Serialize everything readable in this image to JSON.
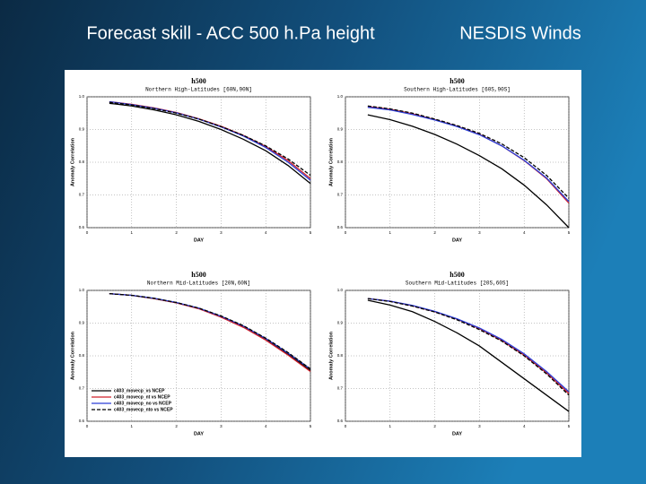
{
  "slide": {
    "title": "Forecast skill - ACC 500 h.Pa height",
    "title_right": "NESDIS Winds"
  },
  "chart_data": [
    {
      "type": "line",
      "title": "h500",
      "subtitle": "Northern High-Latitudes [60N,90N]",
      "x_label": "DAY",
      "y_label": "Anomaly Correlation",
      "x": [
        0.5,
        1,
        1.5,
        2,
        2.5,
        3,
        3.5,
        4,
        4.5,
        5
      ],
      "xlim": [
        0,
        5
      ],
      "xticks": [
        0,
        1,
        2,
        3,
        4,
        5
      ],
      "ylim": [
        0.6,
        1
      ],
      "yticks": [
        0.6,
        0.7,
        0.8,
        0.9,
        {
          "value": 1,
          "label": "1.0"
        }
      ],
      "series": [
        {
          "color": "#000000",
          "dash": false,
          "values": [
            0.98,
            0.972,
            0.96,
            0.945,
            0.925,
            0.9,
            0.87,
            0.835,
            0.79,
            0.735
          ]
        },
        {
          "color": "#d0202a",
          "dash": false,
          "values": [
            0.985,
            0.977,
            0.966,
            0.952,
            0.933,
            0.91,
            0.882,
            0.848,
            0.805,
            0.75
          ]
        },
        {
          "color": "#2a3fd8",
          "dash": false,
          "values": [
            0.985,
            0.976,
            0.965,
            0.951,
            0.932,
            0.908,
            0.88,
            0.845,
            0.8,
            0.745
          ]
        },
        {
          "color": "#000000",
          "dash": true,
          "values": [
            0.983,
            0.975,
            0.964,
            0.95,
            0.932,
            0.909,
            0.882,
            0.85,
            0.81,
            0.76
          ]
        }
      ]
    },
    {
      "type": "line",
      "title": "h500",
      "subtitle": "Southern High-Latitudes [60S,90S]",
      "x_label": "DAY",
      "y_label": "Anomaly Correlation",
      "x": [
        0.5,
        1,
        1.5,
        2,
        2.5,
        3,
        3.5,
        4,
        4.5,
        5
      ],
      "xlim": [
        0,
        5
      ],
      "xticks": [
        0,
        1,
        2,
        3,
        4,
        5
      ],
      "ylim": [
        0.6,
        1
      ],
      "yticks": [
        0.6,
        0.7,
        0.8,
        0.9,
        {
          "value": 1,
          "label": "1.0"
        }
      ],
      "series": [
        {
          "color": "#000000",
          "dash": false,
          "values": [
            0.945,
            0.93,
            0.91,
            0.885,
            0.855,
            0.82,
            0.78,
            0.73,
            0.67,
            0.6
          ]
        },
        {
          "color": "#d0202a",
          "dash": false,
          "values": [
            0.97,
            0.962,
            0.948,
            0.93,
            0.91,
            0.885,
            0.85,
            0.805,
            0.75,
            0.675
          ]
        },
        {
          "color": "#2a3fd8",
          "dash": false,
          "values": [
            0.968,
            0.96,
            0.946,
            0.929,
            0.909,
            0.884,
            0.85,
            0.806,
            0.752,
            0.68
          ]
        },
        {
          "color": "#000000",
          "dash": true,
          "values": [
            0.972,
            0.963,
            0.95,
            0.932,
            0.912,
            0.888,
            0.856,
            0.814,
            0.76,
            0.69
          ]
        }
      ]
    },
    {
      "type": "line",
      "title": "h500",
      "subtitle": "Northern Mid-Latitudes [20N,60N]",
      "x_label": "DAY",
      "y_label": "Anomaly Correlation",
      "x": [
        0.5,
        1,
        1.5,
        2,
        2.5,
        3,
        3.5,
        4,
        4.5,
        5
      ],
      "xlim": [
        0,
        5
      ],
      "xticks": [
        0,
        1,
        2,
        3,
        4,
        5
      ],
      "ylim": [
        0.6,
        1
      ],
      "yticks": [
        0.6,
        0.7,
        0.8,
        0.9,
        {
          "value": 1,
          "label": "1.0"
        }
      ],
      "legend": "lower left",
      "series": [
        {
          "name": "c403_movecp_vs NCEP",
          "color": "#000000",
          "dash": false,
          "values": [
            0.99,
            0.985,
            0.975,
            0.962,
            0.945,
            0.92,
            0.89,
            0.85,
            0.805,
            0.755
          ]
        },
        {
          "name": "c403_movecp_nt vs NCEP",
          "color": "#d0202a",
          "dash": false,
          "values": [
            0.99,
            0.985,
            0.975,
            0.962,
            0.944,
            0.918,
            0.887,
            0.848,
            0.802,
            0.752
          ]
        },
        {
          "name": "c403_movecp_no vs NCEP",
          "color": "#2a3fd8",
          "dash": false,
          "values": [
            0.99,
            0.985,
            0.976,
            0.963,
            0.946,
            0.921,
            0.891,
            0.853,
            0.808,
            0.76
          ]
        },
        {
          "name": "c403_movecp_nto vs NCEP",
          "color": "#000000",
          "dash": true,
          "values": [
            0.99,
            0.985,
            0.976,
            0.963,
            0.946,
            0.922,
            0.892,
            0.854,
            0.81,
            0.76
          ]
        }
      ]
    },
    {
      "type": "line",
      "title": "h500",
      "subtitle": "Southern Mid-Latitudes [20S,60S]",
      "x_label": "DAY",
      "y_label": "Anomaly Correlation",
      "x": [
        0.5,
        1,
        1.5,
        2,
        2.5,
        3,
        3.5,
        4,
        4.5,
        5
      ],
      "xlim": [
        0,
        5
      ],
      "xticks": [
        0,
        1,
        2,
        3,
        4,
        5
      ],
      "ylim": [
        0.6,
        1
      ],
      "yticks": [
        0.6,
        0.7,
        0.8,
        0.9,
        {
          "value": 1,
          "label": "1.0"
        }
      ],
      "series": [
        {
          "color": "#000000",
          "dash": false,
          "values": [
            0.97,
            0.955,
            0.935,
            0.905,
            0.87,
            0.83,
            0.78,
            0.73,
            0.68,
            0.63
          ]
        },
        {
          "color": "#d0202a",
          "dash": false,
          "values": [
            0.975,
            0.967,
            0.953,
            0.935,
            0.912,
            0.883,
            0.847,
            0.802,
            0.748,
            0.685
          ]
        },
        {
          "color": "#2a3fd8",
          "dash": false,
          "values": [
            0.975,
            0.967,
            0.954,
            0.936,
            0.913,
            0.885,
            0.85,
            0.806,
            0.752,
            0.69
          ]
        },
        {
          "color": "#000000",
          "dash": true,
          "values": [
            0.975,
            0.966,
            0.952,
            0.934,
            0.91,
            0.88,
            0.845,
            0.8,
            0.745,
            0.68
          ]
        }
      ]
    }
  ]
}
